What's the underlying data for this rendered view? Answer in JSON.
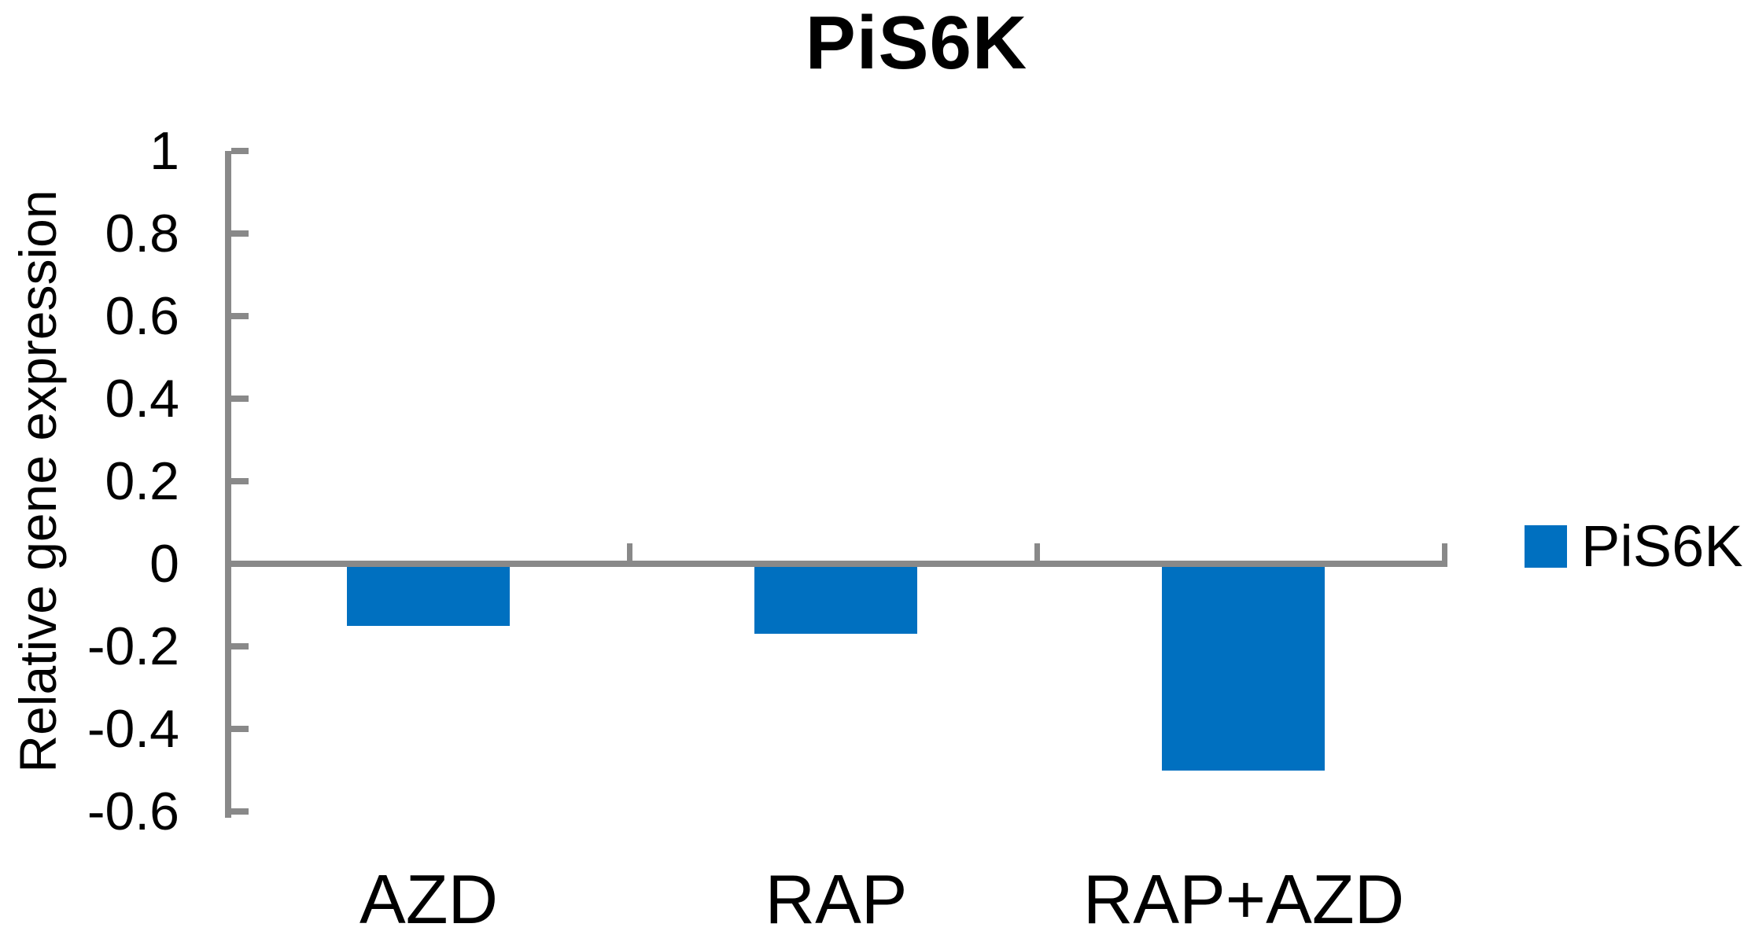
{
  "chart_data": {
    "type": "bar",
    "title": "PiS6K",
    "ylabel": "Relative gene expression",
    "categories": [
      "AZD",
      "RAP",
      "RAP+AZD"
    ],
    "series": [
      {
        "name": "PiS6K",
        "color": "#0070C0",
        "values": [
          -0.15,
          -0.17,
          -0.5
        ]
      }
    ],
    "ylim": [
      -0.6,
      1
    ],
    "yticks": [
      1,
      0.8,
      0.6,
      0.4,
      0.2,
      0,
      -0.2,
      -0.4,
      -0.6
    ],
    "ytick_labels": [
      "1",
      "0.8",
      "0.6",
      "0.4",
      "0.2",
      "0",
      "-0.2",
      "-0.4",
      "-0.6"
    ],
    "grid": false,
    "legend": {
      "position": "right",
      "entries": [
        {
          "label": "PiS6K",
          "color": "#0070C0"
        }
      ]
    },
    "axis_color": "#898989",
    "text_color": "#000000",
    "bar_width_frac": 0.4
  }
}
